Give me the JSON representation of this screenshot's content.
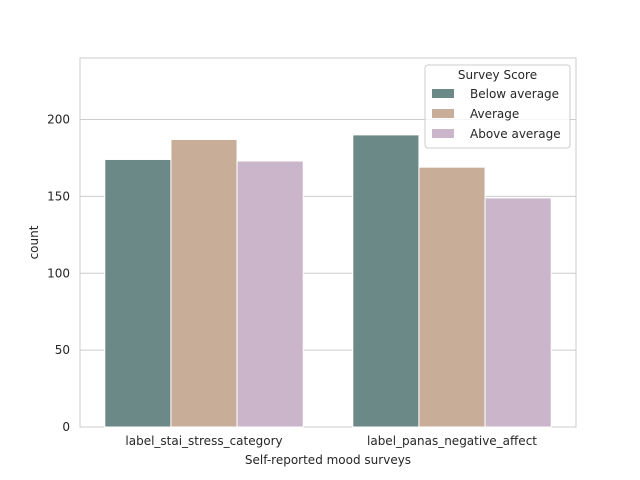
{
  "chart_data": {
    "type": "bar",
    "title": "",
    "xlabel": "Self-reported mood surveys",
    "ylabel": "count",
    "categories": [
      "label_stai_stress_category",
      "label_panas_negative_affect"
    ],
    "series": [
      {
        "name": "Below average",
        "values": [
          174,
          190
        ],
        "color": "#6b8987"
      },
      {
        "name": "Average",
        "values": [
          187,
          169
        ],
        "color": "#c8ae98"
      },
      {
        "name": "Above average",
        "values": [
          173,
          149
        ],
        "color": "#cab5cb"
      }
    ],
    "yticks": [
      0,
      50,
      100,
      150,
      200
    ],
    "ylim": [
      0,
      240
    ],
    "grid": "y",
    "legend": {
      "title": "Survey Score",
      "placement": "top-right"
    }
  }
}
